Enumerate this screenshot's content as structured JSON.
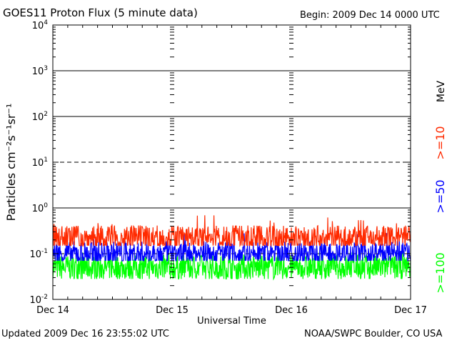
{
  "header": {
    "title": "GOES11 Proton Flux (5 minute data)",
    "begin": "Begin: 2009 Dec 14 0000 UTC"
  },
  "footer": {
    "updated": "Updated 2009 Dec 16 23:55:02 UTC",
    "credit": "NOAA/SWPC Boulder, CO USA"
  },
  "chart_data": {
    "type": "line",
    "title": "GOES11 Proton Flux (5 minute data)",
    "xlabel": "Universal Time",
    "ylabel": "Particles cm⁻²s⁻¹sr⁻¹",
    "y_scale": "log",
    "ylim": [
      0.01,
      10000
    ],
    "y_ticks": [
      {
        "base": "10",
        "exp": "4"
      },
      {
        "base": "10",
        "exp": "3"
      },
      {
        "base": "10",
        "exp": "2"
      },
      {
        "base": "10",
        "exp": "1"
      },
      {
        "base": "10",
        "exp": "0"
      },
      {
        "base": "10",
        "exp": "-1"
      },
      {
        "base": "10",
        "exp": "-2"
      }
    ],
    "x_ticks": [
      "Dec 14",
      "Dec 15",
      "Dec 16",
      "Dec 17"
    ],
    "xlim": [
      "2009-12-14 00:00",
      "2009-12-17 00:00"
    ],
    "legend_unit": "MeV",
    "series": [
      {
        "name": ">=10",
        "color": "#ff2a00",
        "typical": 0.22,
        "min": 0.15,
        "max": 0.7
      },
      {
        "name": ">=50",
        "color": "#0000ff",
        "typical": 0.1,
        "min": 0.07,
        "max": 0.3
      },
      {
        "name": ">=100",
        "color": "#00ff00",
        "typical": 0.05,
        "min": 0.028,
        "max": 0.11
      }
    ]
  }
}
